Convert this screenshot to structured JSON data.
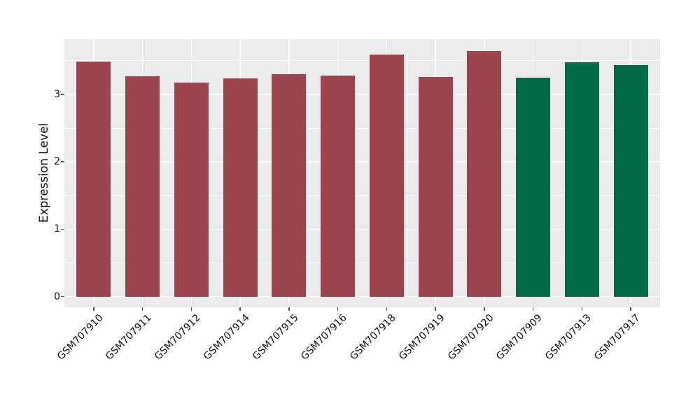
{
  "chart_data": {
    "type": "bar",
    "title": "",
    "xlabel": "",
    "ylabel": "Expression Level",
    "categories": [
      "GSM707910",
      "GSM707911",
      "GSM707912",
      "GSM707914",
      "GSM707915",
      "GSM707916",
      "GSM707918",
      "GSM707919",
      "GSM707920",
      "GSM707909",
      "GSM707913",
      "GSM707917"
    ],
    "values": [
      3.49,
      3.27,
      3.18,
      3.24,
      3.3,
      3.28,
      3.59,
      3.26,
      3.64,
      3.25,
      3.48,
      3.44
    ],
    "colors": [
      "#9A4450",
      "#9A4450",
      "#9A4450",
      "#9A4450",
      "#9A4450",
      "#9A4450",
      "#9A4450",
      "#9A4450",
      "#9A4450",
      "#006B48",
      "#006B48",
      "#006B48"
    ],
    "group_colors": {
      "maroon_group": "#9A4450",
      "green_group": "#006B48"
    },
    "y_ticks": [
      "0",
      "1",
      "2",
      "3"
    ],
    "y_tick_values": [
      0,
      1,
      2,
      3
    ],
    "y_minor_tick_values": [
      0.5,
      1.5,
      2.5,
      3.5
    ],
    "ylim": [
      -0.16,
      3.82
    ],
    "panel_bg": "#EBEBEB",
    "grid_color": "#FFFFFF",
    "tick_mark_color": "#555555",
    "text_color": "#111111",
    "legend": null,
    "grid": "horizontal major+minor white lines, vertical white line at each bar center",
    "x_label_angle_deg": 45
  }
}
